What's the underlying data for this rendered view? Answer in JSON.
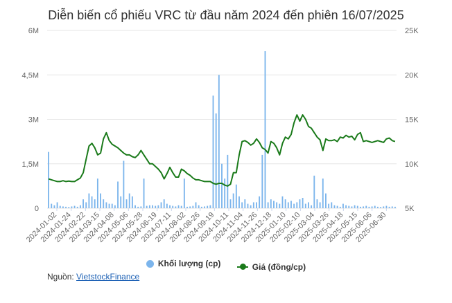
{
  "title": "Diễn biến cổ phiếu VRC từ đầu năm 2024 đến phiên 16/07/2025",
  "source": {
    "label": "Nguồn:",
    "link_text": "VietstockFinance"
  },
  "legend": {
    "volume": "Khối lượng (cp)",
    "price": "Giá (đồng/cp)"
  },
  "colors": {
    "volume": "#7cb5ec",
    "price": "#1a7a1a",
    "grid": "#e6e6e6"
  },
  "chart_data": {
    "type": "line",
    "left_axis": {
      "ticks": [
        0,
        1500000,
        3000000,
        4500000,
        6000000
      ],
      "labels": [
        "0",
        "1,5M",
        "3M",
        "4,5M",
        "6M"
      ],
      "ylim": [
        0,
        6000000
      ]
    },
    "right_axis": {
      "ticks": [
        5000,
        10000,
        15000,
        20000,
        25000
      ],
      "labels": [
        "5K",
        "10K",
        "15K",
        "20K",
        "25K"
      ],
      "ylim": [
        5000,
        25000
      ]
    },
    "x_labels": [
      "2024-01-02",
      "2024-01-24",
      "2024-02-22",
      "2024-03-15",
      "2024-04-08",
      "2024-05-06",
      "2024-05-28",
      "2024-06-19",
      "2024-07-11",
      "2024-08-02",
      "2024-08-26",
      "2024-09-19",
      "2024-10-11",
      "2024-11-04",
      "2024-11-26",
      "2024-12-18",
      "2025-01-10",
      "2025-02-10",
      "2025-03-04",
      "2025-03-26",
      "2025-04-18",
      "2025-05-15",
      "2025-06-06",
      "2025-06-30"
    ],
    "series": [
      {
        "name": "Giá (đồng/cp)",
        "values": [
          8300,
          8200,
          8100,
          8000,
          8000,
          8100,
          8000,
          8050,
          8000,
          8000,
          8200,
          8400,
          9000,
          10500,
          12000,
          12300,
          11800,
          11000,
          11200,
          12800,
          13500,
          12600,
          12200,
          12000,
          11800,
          11500,
          11200,
          11000,
          11000,
          10800,
          10700,
          11000,
          11500,
          11000,
          10500,
          10000,
          10000,
          9700,
          9400,
          9000,
          8300,
          8900,
          9600,
          9000,
          8500,
          8500,
          9400,
          9200,
          8900,
          8700,
          8400,
          8200,
          8200,
          8100,
          8000,
          8000,
          8000,
          7800,
          7700,
          7800,
          7800,
          7600,
          7500,
          7700,
          9000,
          9000,
          11000,
          12500,
          12600,
          12400,
          12100,
          12300,
          12800,
          12400,
          11800,
          11600,
          11200,
          12500,
          12300,
          11800,
          11000,
          12300,
          13000,
          12800,
          13300,
          14600,
          15500,
          14800,
          15500,
          15000,
          14200,
          14000,
          13500,
          13000,
          12700,
          11500,
          12800,
          12600,
          12600,
          12700,
          12500,
          13000,
          12900,
          13200,
          13000,
          13100,
          12700,
          13300,
          13500,
          12500,
          12600,
          12500,
          12400,
          12500,
          12600,
          12500,
          12400,
          12800,
          12900,
          12600,
          12500
        ]
      },
      {
        "name": "Khối lượng (cp)",
        "values": [
          1900000,
          150000,
          100000,
          200000,
          80000,
          60000,
          50000,
          40000,
          60000,
          80000,
          50000,
          100000,
          300000,
          200000,
          500000,
          400000,
          300000,
          1000000,
          500000,
          300000,
          200000,
          150000,
          150000,
          100000,
          900000,
          400000,
          1600000,
          300000,
          500000,
          400000,
          100000,
          50000,
          60000,
          1000000,
          80000,
          100000,
          100000,
          80000,
          100000,
          200000,
          300000,
          150000,
          100000,
          80000,
          60000,
          100000,
          80000,
          1000000,
          50000,
          60000,
          80000,
          200000,
          100000,
          50000,
          60000,
          80000,
          100000,
          3800000,
          3200000,
          4500000,
          1500000,
          1000000,
          1800000,
          300000,
          500000,
          800000,
          400000,
          200000,
          300000,
          150000,
          100000,
          200000,
          200000,
          400000,
          1800000,
          5300000,
          200000,
          300000,
          250000,
          200000,
          150000,
          400000,
          300000,
          200000,
          250000,
          150000,
          200000,
          300000,
          350000,
          150000,
          200000,
          100000,
          1100000,
          300000,
          200000,
          1000000,
          500000,
          150000,
          200000,
          100000,
          80000,
          50000,
          150000,
          100000,
          80000,
          60000,
          100000,
          80000,
          50000,
          60000,
          80000,
          50000,
          60000,
          80000,
          50000,
          40000,
          60000,
          80000,
          50000,
          60000,
          50000
        ]
      }
    ]
  }
}
